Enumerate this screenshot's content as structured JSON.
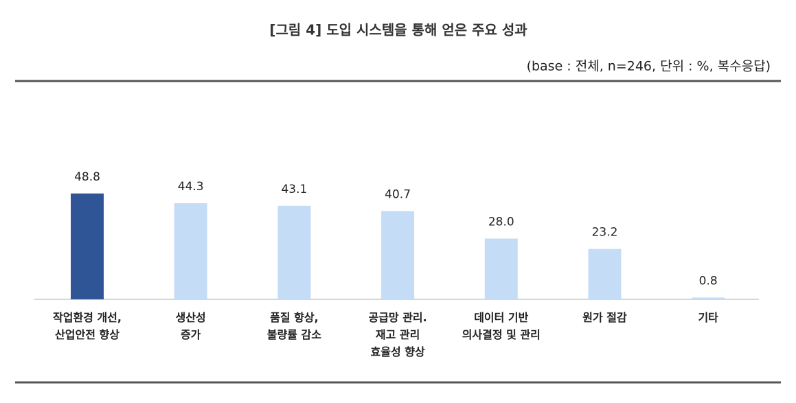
{
  "chart_data": {
    "type": "bar",
    "title": "[그림 4] 도입 시스템을 통해 얻은 주요 성과",
    "subtitle": "(base : 전체, n=246, 단위 : %, 복수응답)",
    "categories": [
      "작업환경 개선,\n산업안전 향상",
      "생산성\n증가",
      "품질 향상,\n불량률 감소",
      "공급망 관리.\n재고 관리\n효율성 향상",
      "데이터 기반\n의사결정 및 관리",
      "원가 절감",
      "기타"
    ],
    "values": [
      48.8,
      44.3,
      43.1,
      40.7,
      28.0,
      23.2,
      0.8
    ],
    "value_labels": [
      "48.8",
      "44.3",
      "43.1",
      "40.7",
      "28.0",
      "23.2",
      "0.8"
    ],
    "colors": [
      "#2f5597",
      "#c5dcf7",
      "#c5dcf7",
      "#c5dcf7",
      "#c5dcf7",
      "#c5dcf7",
      "#c5dcf7"
    ]
  }
}
